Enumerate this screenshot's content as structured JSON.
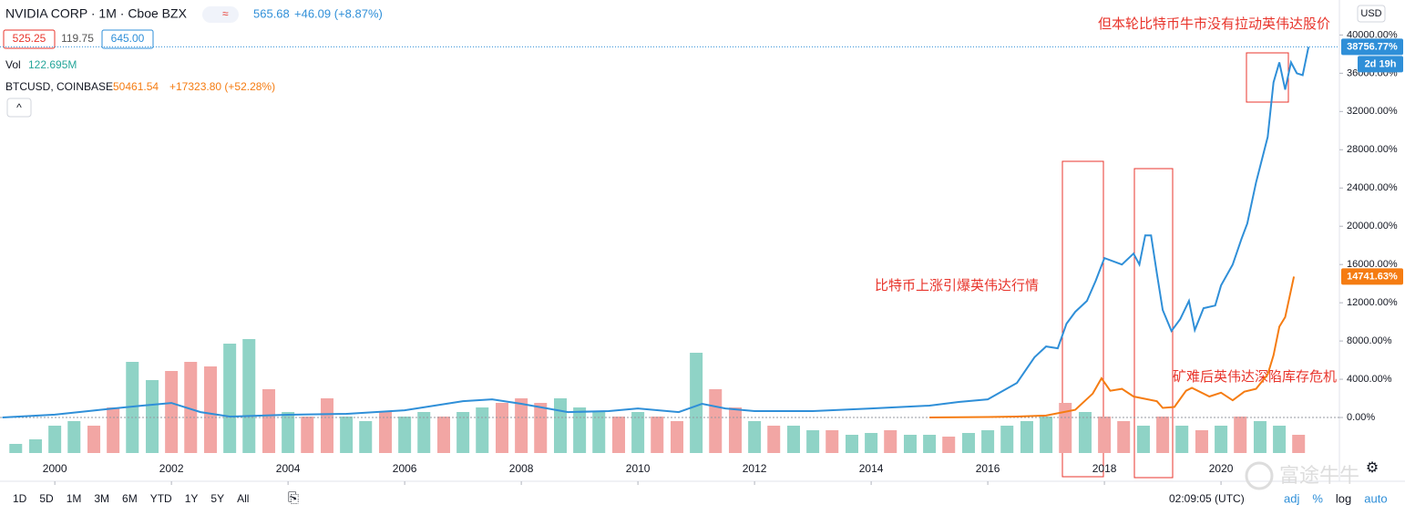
{
  "chart_data": {
    "type": "line",
    "header": {
      "symbol": "NVIDIA CORP · 1M · Cboe BZX",
      "badge": "≈",
      "price": "565.68",
      "change": "+46.09 (+8.87%)",
      "bid": "525.25",
      "spread": "119.75",
      "ask": "645.00",
      "vol_label": "Vol",
      "vol_value": "122.695M",
      "compare_symbol": "BTCUSD, COINBASE",
      "compare_price": "50461.54",
      "compare_change": "+17323.80 (+52.28%)",
      "currency": "USD",
      "collapse": "^"
    },
    "annotations": [
      "但本轮比特币牛市没有拉动英伟达股价",
      "比特币上涨引爆英伟达行情",
      "矿难后英伟达深陷库存危机"
    ],
    "countdown": "2d 19h",
    "xlim": [
      1999.06,
      2022.03
    ],
    "xticks": [
      2000,
      2002,
      2004,
      2006,
      2008,
      2010,
      2012,
      2014,
      2016,
      2018,
      2020
    ],
    "ylim": [
      -4000,
      40800
    ],
    "yticks": [
      {
        "value": 0,
        "label": "0.00%"
      },
      {
        "value": 4000,
        "label": "4000.00%"
      },
      {
        "value": 8000,
        "label": "8000.00%"
      },
      {
        "value": 12000,
        "label": "12000.00%"
      },
      {
        "value": 16000,
        "label": "16000.00%"
      },
      {
        "value": 20000,
        "label": "20000.00%"
      },
      {
        "value": 24000,
        "label": "24000.00%"
      },
      {
        "value": 28000,
        "label": "28000.00%"
      },
      {
        "value": 32000,
        "label": "32000.00%"
      },
      {
        "value": 36000,
        "label": "36000.00%"
      },
      {
        "value": 40000,
        "label": "40000.00%"
      }
    ],
    "grid": false,
    "series": [
      {
        "name": "NVIDIA CORP",
        "color": "#2f8fd8",
        "last_label": "38756.77%",
        "x": [
          1999.1,
          2000,
          2001,
          2001.5,
          2002,
          2002.5,
          2003,
          2004,
          2005,
          2006,
          2007,
          2007.5,
          2008,
          2008.8,
          2009.5,
          2010,
          2010.7,
          2011.1,
          2011.5,
          2012,
          2013,
          2014,
          2015,
          2015.5,
          2016,
          2016.5,
          2016.8,
          2017,
          2017.2,
          2017.35,
          2017.5,
          2017.7,
          2017.85,
          2018,
          2018.3,
          2018.5,
          2018.6,
          2018.7,
          2018.8,
          2018.9,
          2019,
          2019.15,
          2019.3,
          2019.45,
          2019.55,
          2019.7,
          2019.9,
          2020,
          2020.2,
          2020.35,
          2020.45,
          2020.6,
          2020.8,
          2020.9,
          2021,
          2021.1,
          2021.2,
          2021.3,
          2021.4,
          2021.5
        ],
        "values": [
          0,
          300,
          950,
          1240,
          1520,
          570,
          100,
          290,
          380,
          760,
          1710,
          1900,
          1430,
          570,
          670,
          950,
          570,
          1430,
          950,
          670,
          670,
          950,
          1240,
          1620,
          1900,
          3620,
          6290,
          7430,
          7240,
          9810,
          11050,
          12190,
          14290,
          16670,
          16000,
          17140,
          16000,
          19050,
          19050,
          15050,
          11240,
          9050,
          10290,
          12190,
          9140,
          11430,
          11710,
          13810,
          16000,
          18670,
          20290,
          24570,
          29330,
          35050,
          37140,
          34290,
          37140,
          36000,
          35800,
          38756.77
        ]
      },
      {
        "name": "BTCUSD, COINBASE",
        "color": "#f57c12",
        "last_label": "14741.63%",
        "x": [
          2015,
          2016,
          2016.5,
          2017,
          2017.5,
          2017.8,
          2017.95,
          2018.1,
          2018.3,
          2018.5,
          2018.9,
          2019,
          2019.2,
          2019.4,
          2019.5,
          2019.8,
          2020,
          2020.2,
          2020.4,
          2020.6,
          2020.8,
          2020.9,
          2021,
          2021.1,
          2021.25
        ],
        "values": [
          0,
          50,
          100,
          200,
          800,
          2500,
          4100,
          2800,
          3000,
          2200,
          1700,
          1000,
          1100,
          2800,
          3100,
          2200,
          2600,
          1800,
          2700,
          3000,
          4500,
          6500,
          9500,
          10500,
          14741.63
        ]
      }
    ],
    "volume": {
      "name": "Vol",
      "vollim": [
        0,
        600
      ],
      "x": [
        1999.33,
        1999.67,
        2000,
        2000.33,
        2000.67,
        2001,
        2001.33,
        2001.67,
        2002,
        2002.33,
        2002.67,
        2003,
        2003.33,
        2003.67,
        2004,
        2004.33,
        2004.67,
        2005,
        2005.33,
        2005.67,
        2006,
        2006.33,
        2006.67,
        2007,
        2007.33,
        2007.67,
        2008,
        2008.33,
        2008.67,
        2009,
        2009.33,
        2009.67,
        2010,
        2010.33,
        2010.67,
        2011,
        2011.33,
        2011.67,
        2012,
        2012.33,
        2012.67,
        2013,
        2013.33,
        2013.67,
        2014,
        2014.33,
        2014.67,
        2015,
        2015.33,
        2015.67,
        2016,
        2016.33,
        2016.67,
        2017,
        2017.33,
        2017.67,
        2018,
        2018.33,
        2018.67,
        2019,
        2019.33,
        2019.67,
        2020,
        2020.33,
        2020.67,
        2021,
        2021.33
      ],
      "values": [
        40,
        60,
        120,
        140,
        120,
        200,
        400,
        320,
        360,
        400,
        380,
        480,
        500,
        280,
        180,
        160,
        240,
        160,
        140,
        180,
        160,
        180,
        160,
        180,
        200,
        220,
        240,
        220,
        240,
        200,
        180,
        160,
        180,
        160,
        140,
        440,
        280,
        200,
        140,
        120,
        120,
        100,
        100,
        80,
        88,
        100,
        80,
        80,
        72,
        88,
        100,
        120,
        140,
        160,
        220,
        180,
        160,
        140,
        120,
        160,
        120,
        100,
        120,
        160,
        140,
        120,
        80
      ],
      "colors": [
        "#8fd3c6",
        "#8fd3c6",
        "#8fd3c6",
        "#8fd3c6",
        "#f2a6a4",
        "#f2a6a4",
        "#8fd3c6",
        "#8fd3c6",
        "#f2a6a4",
        "#f2a6a4",
        "#f2a6a4",
        "#8fd3c6",
        "#8fd3c6",
        "#f2a6a4",
        "#8fd3c6",
        "#f2a6a4",
        "#f2a6a4",
        "#8fd3c6",
        "#8fd3c6",
        "#f2a6a4",
        "#8fd3c6",
        "#8fd3c6",
        "#f2a6a4",
        "#8fd3c6",
        "#8fd3c6",
        "#f2a6a4",
        "#f2a6a4",
        "#f2a6a4",
        "#8fd3c6",
        "#8fd3c6",
        "#8fd3c6",
        "#f2a6a4",
        "#8fd3c6",
        "#f2a6a4",
        "#f2a6a4",
        "#8fd3c6",
        "#f2a6a4",
        "#f2a6a4",
        "#8fd3c6",
        "#f2a6a4",
        "#8fd3c6",
        "#8fd3c6",
        "#f2a6a4",
        "#8fd3c6",
        "#8fd3c6",
        "#f2a6a4",
        "#8fd3c6",
        "#8fd3c6",
        "#f2a6a4",
        "#8fd3c6",
        "#8fd3c6",
        "#8fd3c6",
        "#8fd3c6",
        "#8fd3c6",
        "#f2a6a4",
        "#8fd3c6",
        "#f2a6a4",
        "#f2a6a4",
        "#8fd3c6",
        "#f2a6a4",
        "#8fd3c6",
        "#f2a6a4",
        "#8fd3c6",
        "#f2a6a4",
        "#8fd3c6",
        "#8fd3c6",
        "#f2a6a4"
      ]
    },
    "toolbar": {
      "ranges": [
        "1D",
        "5D",
        "1M",
        "3M",
        "6M",
        "YTD",
        "1Y",
        "5Y",
        "All"
      ],
      "clock": "02:09:05 (UTC)",
      "options": [
        "adj",
        "%",
        "log",
        "auto"
      ],
      "watermark": "富途牛牛"
    }
  }
}
